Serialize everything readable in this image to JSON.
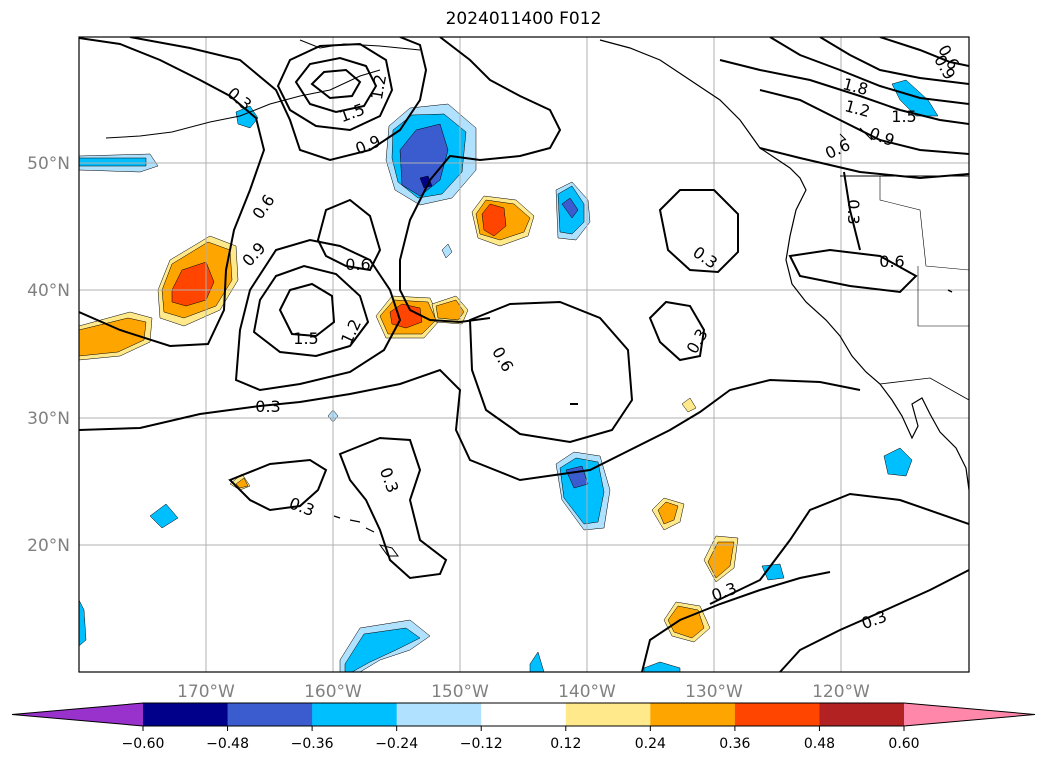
{
  "title": "2024011400 F012",
  "map": {
    "lon_range": [
      -180,
      -110
    ],
    "lat_range": [
      10,
      60
    ],
    "lat_labels": [
      "50°N",
      "40°N",
      "30°N",
      "20°N"
    ],
    "lon_labels": [
      "170°W",
      "160°W",
      "150°W",
      "140°W",
      "130°W",
      "120°W"
    ],
    "contour_labels": [
      "0.3",
      "1.2",
      "1.5",
      "0.9",
      "0.6",
      "0.9",
      "0.6",
      "1.5",
      "1.2",
      "0.3",
      "0.6",
      "0.3",
      "0.3",
      "0.3",
      "0.3",
      "0.3",
      "0.3",
      "0.3",
      "0.6",
      "0.6",
      "0.9",
      "1.2",
      "1.5",
      "1.8",
      "0.9",
      "0.6"
    ]
  },
  "colorbar": {
    "colors": [
      "#9932cc",
      "#00008b",
      "#3a5ccf",
      "#00bfff",
      "#b0e2ff",
      "#ffffff",
      "#ffe98a",
      "#ffa500",
      "#ff4500",
      "#b22222",
      "#ff88aa"
    ],
    "tick_labels": [
      "−0.60",
      "−0.48",
      "−0.36",
      "−0.24",
      "−0.12",
      "0.12",
      "0.24",
      "0.36",
      "0.48",
      "0.60"
    ]
  }
}
